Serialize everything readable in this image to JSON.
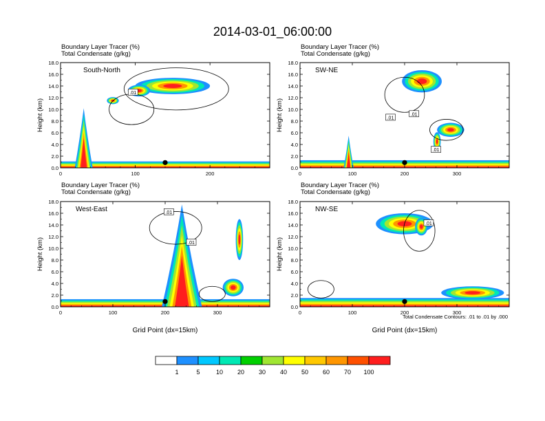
{
  "title": "2014-03-01_06:00:00",
  "footer_note": "Total Condensate Contours: .01 to .01 by .000",
  "contour_label": ".01",
  "chart_data": [
    {
      "type": "heatmap",
      "name": "South-North",
      "label": "South-North",
      "header1": "Boundary Layer Tracer   (%)",
      "header2": "Total Condensate   (g/kg)",
      "ylabel": "Height (km)",
      "xlabel": "",
      "xlim": [
        0,
        280
      ],
      "ylim": [
        0,
        18
      ],
      "xticks": [
        0,
        100,
        200
      ],
      "yticks": [
        "0.0",
        "2.0",
        "4.0",
        "6.0",
        "8.0",
        "10.0",
        "12.0",
        "14.0",
        "16.0",
        "18.0"
      ],
      "marker_x": 140,
      "features": [
        {
          "kind": "ground",
          "x0": 0,
          "x1": 280,
          "top": 1.1
        },
        {
          "kind": "peak",
          "xc": 31,
          "w": 5,
          "h": 10.2
        },
        {
          "kind": "blob",
          "xc": 150,
          "yc": 14.0,
          "rx": 50,
          "ry": 1.4
        },
        {
          "kind": "blob",
          "xc": 105,
          "yc": 13.2,
          "rx": 15,
          "ry": 1.0
        },
        {
          "kind": "blob",
          "xc": 70,
          "yc": 11.5,
          "rx": 8,
          "ry": 0.6
        }
      ],
      "contours": [
        {
          "xc": 155,
          "yc": 13.5,
          "rx": 70,
          "ry": 3.6
        },
        {
          "xc": 95,
          "yc": 10.0,
          "rx": 30,
          "ry": 2.6
        }
      ],
      "contour_labels": [
        {
          "x": 97,
          "y": 12.9
        }
      ]
    },
    {
      "type": "heatmap",
      "name": "SW-NE",
      "label": "SW-NE",
      "header1": "Boundary Layer Tracer   (%)",
      "header2": "Total Condensate   (g/kg)",
      "ylabel": "Height (km)",
      "xlabel": "",
      "xlim": [
        0,
        400
      ],
      "ylim": [
        0,
        18
      ],
      "xticks": [
        0,
        100,
        200,
        300
      ],
      "yticks": [
        "0.0",
        "2.0",
        "4.0",
        "6.0",
        "8.0",
        "10.0",
        "12.0",
        "14.0",
        "16.0",
        "18.0"
      ],
      "marker_x": 200,
      "features": [
        {
          "kind": "ground",
          "x0": 0,
          "x1": 400,
          "top": 1.3
        },
        {
          "kind": "peak",
          "xc": 93,
          "w": 4,
          "h": 5.5
        },
        {
          "kind": "blob",
          "xc": 233,
          "yc": 14.8,
          "rx": 38,
          "ry": 1.9
        },
        {
          "kind": "blob",
          "xc": 288,
          "yc": 6.5,
          "rx": 26,
          "ry": 1.2
        },
        {
          "kind": "blob",
          "xc": 262,
          "yc": 4.5,
          "rx": 7,
          "ry": 1.6
        }
      ],
      "contours": [
        {
          "xc": 200,
          "yc": 12.5,
          "rx": 38,
          "ry": 3.0
        },
        {
          "xc": 280,
          "yc": 6.5,
          "rx": 32,
          "ry": 1.8
        }
      ],
      "contour_labels": [
        {
          "x": 173,
          "y": 8.6
        },
        {
          "x": 218,
          "y": 9.2
        },
        {
          "x": 260,
          "y": 3.1
        }
      ]
    },
    {
      "type": "heatmap",
      "name": "West-East",
      "label": "West-East",
      "header1": "Boundary Layer Tracer   (%)",
      "header2": "Total Condensate   (g/kg)",
      "ylabel": "Height (km)",
      "xlabel": "Grid Point (dx=15km)",
      "xlim": [
        0,
        400
      ],
      "ylim": [
        0,
        18
      ],
      "xticks": [
        0,
        100,
        200,
        300
      ],
      "yticks": [
        "0.0",
        "2.0",
        "4.0",
        "6.0",
        "8.0",
        "10.0",
        "12.0",
        "14.0",
        "16.0",
        "18.0"
      ],
      "marker_x": 200,
      "features": [
        {
          "kind": "ground",
          "x0": 0,
          "x1": 400,
          "top": 1.3
        },
        {
          "kind": "column",
          "xc": 232,
          "w": 16,
          "h": 17.5
        },
        {
          "kind": "blob",
          "xc": 330,
          "yc": 3.3,
          "rx": 20,
          "ry": 1.5
        },
        {
          "kind": "blob",
          "xc": 342,
          "yc": 11.5,
          "rx": 7,
          "ry": 3.5
        }
      ],
      "contours": [
        {
          "xc": 220,
          "yc": 13.5,
          "rx": 50,
          "ry": 2.8
        },
        {
          "xc": 290,
          "yc": 2.2,
          "rx": 25,
          "ry": 1.3
        }
      ],
      "contour_labels": [
        {
          "x": 250,
          "y": 11.0
        },
        {
          "x": 207,
          "y": 16.2
        }
      ]
    },
    {
      "type": "heatmap",
      "name": "NW-SE",
      "label": "NW-SE",
      "header1": "Boundary Layer Tracer   (%)",
      "header2": "Total Condensate   (g/kg)",
      "ylabel": "Height (km)",
      "xlabel": "Grid Point (dx=15km)",
      "xlim": [
        0,
        400
      ],
      "ylim": [
        0,
        18
      ],
      "xticks": [
        0,
        100,
        200,
        300
      ],
      "yticks": [
        "0.0",
        "2.0",
        "4.0",
        "6.0",
        "8.0",
        "10.0",
        "12.0",
        "14.0",
        "16.0",
        "18.0"
      ],
      "marker_x": 200,
      "features": [
        {
          "kind": "ground",
          "x0": 0,
          "x1": 400,
          "top": 1.5
        },
        {
          "kind": "blob",
          "xc": 200,
          "yc": 14.2,
          "rx": 55,
          "ry": 1.8
        },
        {
          "kind": "blob",
          "xc": 232,
          "yc": 13.7,
          "rx": 12,
          "ry": 1.5
        },
        {
          "kind": "blob",
          "xc": 330,
          "yc": 2.4,
          "rx": 60,
          "ry": 1.1
        }
      ],
      "contours": [
        {
          "xc": 228,
          "yc": 13.0,
          "rx": 30,
          "ry": 3.5
        },
        {
          "xc": 40,
          "yc": 3.0,
          "rx": 25,
          "ry": 1.5
        }
      ],
      "contour_labels": [
        {
          "x": 246,
          "y": 14.3
        }
      ]
    }
  ],
  "colorbar": {
    "labels": [
      "1",
      "5",
      "10",
      "20",
      "30",
      "40",
      "50",
      "60",
      "70",
      "100"
    ],
    "colors": [
      "#ffffff",
      "#1e90ff",
      "#00c8ff",
      "#00e8b4",
      "#00d000",
      "#a0e632",
      "#ffff00",
      "#ffc800",
      "#ff9600",
      "#ff5000",
      "#ff1e1e"
    ]
  }
}
